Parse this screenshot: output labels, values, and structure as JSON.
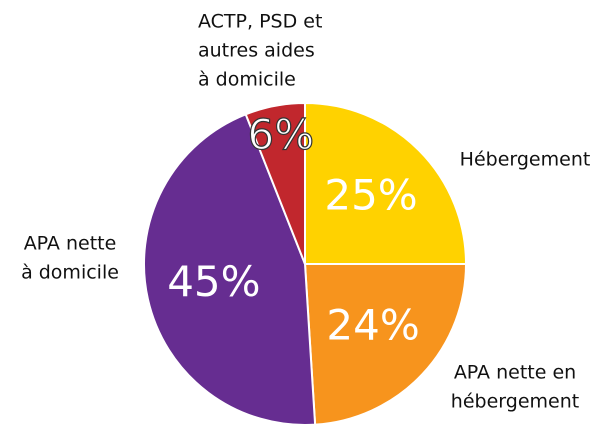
{
  "chart_data": {
    "type": "pie",
    "categories": [
      [
        "Hébergement"
      ],
      [
        "APA nette en",
        "hébergement"
      ],
      [
        "APA nette",
        "à domicile"
      ],
      [
        "ACTP, PSD et",
        "autres aides",
        "à domicile"
      ]
    ],
    "values": [
      25,
      24,
      45,
      6
    ],
    "value_labels": [
      "25%",
      "24%",
      "45%",
      "6%"
    ],
    "colors": [
      "#FFD200",
      "#F7941D",
      "#662D91",
      "#C1272D"
    ]
  }
}
